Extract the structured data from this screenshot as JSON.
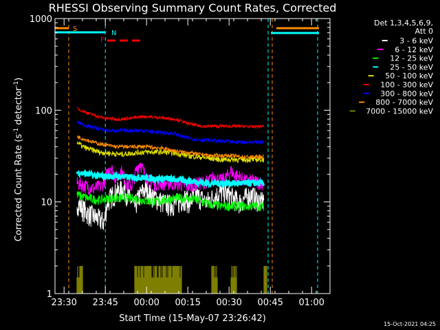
{
  "chart_data": {
    "type": "line",
    "title": "RHESSI Observing Summary Count Rates, Corrected",
    "xlabel": "Start Time (15-May-07 23:26:42)",
    "ylabel_main": "Corrected Count Rate (s",
    "ylabel_sup1": "-1",
    "ylabel_mid": " detector",
    "ylabel_sup2": "-1",
    "ylabel_end": ")",
    "x_unit": "minutes after 23:26:42",
    "xlim": [
      0,
      100
    ],
    "ylim": [
      1,
      1000
    ],
    "y_scale": "log",
    "x_ticks": [
      {
        "v": 3.3,
        "label": "23:30"
      },
      {
        "v": 18.3,
        "label": "23:45"
      },
      {
        "v": 33.3,
        "label": "00:00"
      },
      {
        "v": 48.3,
        "label": "00:15"
      },
      {
        "v": 63.3,
        "label": "00:30"
      },
      {
        "v": 78.3,
        "label": "00:45"
      },
      {
        "v": 93.3,
        "label": "01:00"
      }
    ],
    "y_ticks": [
      {
        "v": 1,
        "label": "1"
      },
      {
        "v": 10,
        "label": "10"
      },
      {
        "v": 100,
        "label": "100"
      },
      {
        "v": 1000,
        "label": "1000"
      }
    ],
    "legend_header": [
      "Det 1,3,4,5,6,9,",
      "Att 0"
    ],
    "legend_placement": "top-right",
    "series": [
      {
        "name": "3 - 6 keV",
        "color": "#ffffff",
        "points": [
          [
            8,
            10
          ],
          [
            10,
            8.5
          ],
          [
            12,
            7.5
          ],
          [
            14,
            7
          ],
          [
            16,
            6.5
          ],
          [
            18,
            6
          ],
          [
            19,
            10
          ],
          [
            21,
            12
          ],
          [
            23,
            13
          ],
          [
            25,
            14
          ],
          [
            27,
            11
          ],
          [
            29,
            9
          ],
          [
            31,
            12
          ],
          [
            33,
            14
          ],
          [
            35,
            12
          ],
          [
            37,
            11
          ],
          [
            39,
            10
          ],
          [
            41,
            9.5
          ],
          [
            43,
            9.5
          ],
          [
            45,
            10
          ],
          [
            47,
            11
          ],
          [
            49,
            10
          ],
          [
            51,
            12
          ],
          [
            53,
            11
          ],
          [
            55,
            10
          ],
          [
            57,
            11
          ],
          [
            59,
            12
          ],
          [
            61,
            13
          ],
          [
            63,
            12
          ],
          [
            65,
            11
          ],
          [
            67,
            10
          ],
          [
            69,
            11
          ],
          [
            71,
            12
          ],
          [
            73,
            11
          ],
          [
            75,
            10
          ],
          [
            76,
            11
          ]
        ]
      },
      {
        "name": "6 - 12 keV",
        "color": "#ff00ff",
        "points": [
          [
            8,
            16
          ],
          [
            11,
            15
          ],
          [
            14,
            14
          ],
          [
            17,
            15
          ],
          [
            19,
            20
          ],
          [
            20,
            25
          ],
          [
            22,
            18
          ],
          [
            24,
            22
          ],
          [
            26,
            16
          ],
          [
            28,
            15
          ],
          [
            30,
            24
          ],
          [
            31,
            27
          ],
          [
            32,
            22
          ],
          [
            34,
            17
          ],
          [
            36,
            16
          ],
          [
            40,
            16
          ],
          [
            44,
            16
          ],
          [
            48,
            15
          ],
          [
            52,
            16
          ],
          [
            56,
            17
          ],
          [
            58,
            19
          ],
          [
            60,
            17
          ],
          [
            62,
            18
          ],
          [
            64,
            22
          ],
          [
            65,
            20
          ],
          [
            67,
            19
          ],
          [
            69,
            17
          ],
          [
            72,
            17
          ],
          [
            76,
            16
          ]
        ]
      },
      {
        "name": "12 - 25 keV",
        "color": "#00ff00",
        "points": [
          [
            8,
            12
          ],
          [
            12,
            11
          ],
          [
            16,
            10.5
          ],
          [
            20,
            11
          ],
          [
            24,
            11
          ],
          [
            28,
            11
          ],
          [
            32,
            10.5
          ],
          [
            36,
            10
          ],
          [
            40,
            10.5
          ],
          [
            44,
            11
          ],
          [
            48,
            11
          ],
          [
            52,
            10.5
          ],
          [
            56,
            9.5
          ],
          [
            60,
            9
          ],
          [
            64,
            9
          ],
          [
            68,
            9
          ],
          [
            72,
            9
          ],
          [
            76,
            9
          ]
        ]
      },
      {
        "name": "25 - 50 keV",
        "color": "#00ffff",
        "points": [
          [
            8,
            21
          ],
          [
            12,
            20
          ],
          [
            16,
            19
          ],
          [
            20,
            19
          ],
          [
            24,
            19
          ],
          [
            28,
            18.5
          ],
          [
            32,
            18.5
          ],
          [
            36,
            18
          ],
          [
            40,
            18
          ],
          [
            44,
            17.5
          ],
          [
            48,
            17
          ],
          [
            52,
            16.5
          ],
          [
            56,
            16
          ],
          [
            60,
            16
          ],
          [
            64,
            16
          ],
          [
            68,
            16
          ],
          [
            72,
            16
          ],
          [
            76,
            16
          ]
        ]
      },
      {
        "name": "50 - 100 keV",
        "color": "#e0e000",
        "points": [
          [
            8,
            45
          ],
          [
            10,
            40
          ],
          [
            12,
            38
          ],
          [
            16,
            35
          ],
          [
            20,
            34
          ],
          [
            24,
            33
          ],
          [
            28,
            34
          ],
          [
            32,
            35
          ],
          [
            36,
            35
          ],
          [
            40,
            35
          ],
          [
            44,
            34
          ],
          [
            48,
            32
          ],
          [
            52,
            31
          ],
          [
            56,
            30
          ],
          [
            60,
            29
          ],
          [
            64,
            29
          ],
          [
            68,
            29
          ],
          [
            72,
            29
          ],
          [
            76,
            29
          ]
        ]
      },
      {
        "name": "100 - 300 keV",
        "color": "#ff0000",
        "points": [
          [
            8,
            105
          ],
          [
            10,
            98
          ],
          [
            12,
            93
          ],
          [
            14,
            89
          ],
          [
            16,
            85
          ],
          [
            18,
            82
          ],
          [
            20,
            81
          ],
          [
            22,
            80
          ],
          [
            24,
            80
          ],
          [
            26,
            81
          ],
          [
            28,
            82
          ],
          [
            30,
            84
          ],
          [
            32,
            85
          ],
          [
            34,
            85
          ],
          [
            36,
            84
          ],
          [
            38,
            83
          ],
          [
            40,
            82
          ],
          [
            42,
            81
          ],
          [
            44,
            80
          ],
          [
            46,
            76
          ],
          [
            48,
            72
          ],
          [
            50,
            70
          ],
          [
            52,
            68
          ],
          [
            54,
            67
          ],
          [
            56,
            67
          ],
          [
            60,
            67
          ],
          [
            64,
            67
          ],
          [
            68,
            67
          ],
          [
            72,
            66
          ],
          [
            76,
            67
          ]
        ]
      },
      {
        "name": "300 - 800 keV",
        "color": "#0000ff",
        "points": [
          [
            8,
            75
          ],
          [
            10,
            70
          ],
          [
            12,
            67
          ],
          [
            14,
            65
          ],
          [
            16,
            63
          ],
          [
            18,
            61
          ],
          [
            20,
            60
          ],
          [
            22,
            60
          ],
          [
            24,
            60
          ],
          [
            26,
            60
          ],
          [
            28,
            60
          ],
          [
            30,
            60
          ],
          [
            32,
            60
          ],
          [
            34,
            59
          ],
          [
            36,
            58
          ],
          [
            38,
            57
          ],
          [
            40,
            57
          ],
          [
            42,
            56
          ],
          [
            44,
            55
          ],
          [
            46,
            52
          ],
          [
            48,
            50
          ],
          [
            50,
            49
          ],
          [
            52,
            48
          ],
          [
            54,
            47
          ],
          [
            56,
            47
          ],
          [
            60,
            46
          ],
          [
            64,
            45
          ],
          [
            68,
            45
          ],
          [
            72,
            45
          ],
          [
            76,
            45
          ]
        ]
      },
      {
        "name": "800 - 7000 keV",
        "color": "#ff8c00",
        "points": [
          [
            8,
            52
          ],
          [
            10,
            49
          ],
          [
            12,
            47
          ],
          [
            14,
            45
          ],
          [
            16,
            43
          ],
          [
            18,
            42
          ],
          [
            20,
            41
          ],
          [
            22,
            40
          ],
          [
            24,
            40
          ],
          [
            26,
            40
          ],
          [
            28,
            40
          ],
          [
            30,
            40
          ],
          [
            32,
            40
          ],
          [
            34,
            40
          ],
          [
            36,
            39
          ],
          [
            38,
            39
          ],
          [
            40,
            38
          ],
          [
            42,
            37
          ],
          [
            44,
            36
          ],
          [
            46,
            35
          ],
          [
            48,
            35
          ],
          [
            50,
            34
          ],
          [
            52,
            33
          ],
          [
            54,
            33
          ],
          [
            56,
            32
          ],
          [
            60,
            32
          ],
          [
            64,
            32
          ],
          [
            68,
            31
          ],
          [
            72,
            31
          ],
          [
            76,
            31
          ]
        ]
      },
      {
        "name": "7000 - 15000 keV",
        "color": "#7f7f00",
        "points": []
      }
    ],
    "high_energy_blocks": [
      [
        8,
        10
      ],
      [
        29,
        46
      ],
      [
        57,
        59
      ],
      [
        64,
        66
      ],
      [
        76,
        77
      ]
    ],
    "annotations": [
      {
        "text": "S",
        "color": "#ff8c00"
      },
      {
        "text": "N",
        "color": "#00ffff"
      },
      {
        "text": "F",
        "color": "#ff0000"
      }
    ]
  },
  "footer": {
    "timestamp": "15-Oct-2021 04:25"
  }
}
